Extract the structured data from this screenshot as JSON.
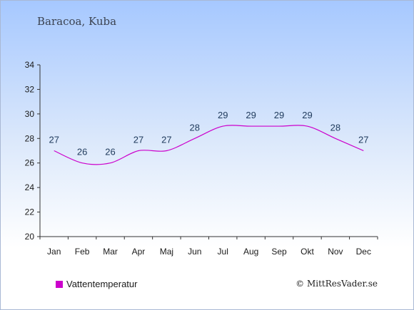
{
  "location": "Baracoa, Kuba",
  "legend_label": "Vattentemperatur",
  "credit": "© MittResVader.se",
  "colors": {
    "series": "#cc00cc",
    "axis": "#333333"
  },
  "chart_data": {
    "type": "line",
    "categories": [
      "Jan",
      "Feb",
      "Mar",
      "Apr",
      "Maj",
      "Jun",
      "Jul",
      "Aug",
      "Sep",
      "Okt",
      "Nov",
      "Dec"
    ],
    "series": [
      {
        "name": "Vattentemperatur",
        "values": [
          27,
          26,
          26,
          27,
          27,
          28,
          29,
          29,
          29,
          29,
          28,
          27
        ]
      }
    ],
    "ylim": [
      20,
      34
    ],
    "yticks": [
      20,
      22,
      24,
      26,
      28,
      30,
      32,
      34
    ],
    "legend": "bottom-left",
    "grid": false
  }
}
